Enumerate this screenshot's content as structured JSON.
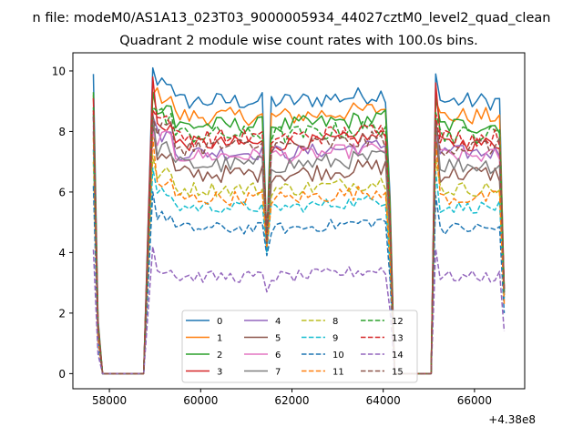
{
  "figure": {
    "suptitle": "n file: modeM0/AS1A13_023T03_9000005934_44027cztM0_level2_quad_clean",
    "offset_label": "+4.38e8"
  },
  "chart_data": {
    "type": "line",
    "title": "Quadrant 2 module wise count rates with 100.0s bins.",
    "xlabel": "",
    "ylabel": "",
    "x_offset": 438000000,
    "xlim": [
      57200,
      67100
    ],
    "ylim": [
      -0.5,
      10.6
    ],
    "xticks": [
      58000,
      60000,
      62000,
      64000,
      66000
    ],
    "xtick_labels": [
      "58000",
      "60000",
      "62000",
      "64000",
      "66000"
    ],
    "yticks": [
      0,
      2,
      4,
      6,
      8,
      10
    ],
    "ytick_labels": [
      "0",
      "2",
      "4",
      "6",
      "8",
      "10"
    ],
    "grid": false,
    "legend_placement": "lower center",
    "legend_columns": 4,
    "x_segments": [
      {
        "start": 57650,
        "end": 58750,
        "step": 100
      },
      {
        "start": 58950,
        "end": 64150,
        "step": 100
      },
      {
        "start": 64250,
        "end": 65050,
        "step": 100
      },
      {
        "start": 65150,
        "end": 66650,
        "step": 100
      }
    ],
    "series": [
      {
        "name": "0",
        "color": "#1f77b4",
        "style": "solid",
        "level": 9.0,
        "edge_start": 9.9,
        "edge_end": 2.6,
        "dip": 4.3,
        "noise": 0.3,
        "burst": 10.1
      },
      {
        "name": "1",
        "color": "#ff7f0e",
        "style": "solid",
        "level": 8.5,
        "edge_start": 9.2,
        "edge_end": 2.8,
        "dip": 4.3,
        "noise": 0.3,
        "burst": 9.2
      },
      {
        "name": "2",
        "color": "#2ca02c",
        "style": "solid",
        "level": 8.2,
        "edge_start": 9.3,
        "edge_end": 2.7,
        "dip": 4.5,
        "noise": 0.3,
        "burst": 9.3
      },
      {
        "name": "3",
        "color": "#d62728",
        "style": "solid",
        "level": 7.6,
        "edge_start": 9.1,
        "edge_end": 2.9,
        "dip": 4.6,
        "noise": 0.25,
        "burst": 9.8
      },
      {
        "name": "4",
        "color": "#9467bd",
        "style": "solid",
        "level": 7.3,
        "edge_start": 8.5,
        "edge_end": 2.8,
        "dip": 4.5,
        "noise": 0.25,
        "burst": 8.5
      },
      {
        "name": "5",
        "color": "#8c564b",
        "style": "solid",
        "level": 6.6,
        "edge_start": 8.0,
        "edge_end": 2.8,
        "dip": 4.1,
        "noise": 0.3,
        "burst": 8.2
      },
      {
        "name": "6",
        "color": "#e377c2",
        "style": "solid",
        "level": 7.2,
        "edge_start": 8.2,
        "edge_end": 2.6,
        "dip": 4.4,
        "noise": 0.25,
        "burst": 8.0
      },
      {
        "name": "7",
        "color": "#7f7f7f",
        "style": "solid",
        "level": 6.9,
        "edge_start": 8.6,
        "edge_end": 2.5,
        "dip": 4.3,
        "noise": 0.3,
        "burst": 8.6
      },
      {
        "name": "8",
        "color": "#bcbd22",
        "style": "dashed",
        "level": 6.1,
        "edge_start": 7.0,
        "edge_end": 2.6,
        "dip": 4.2,
        "noise": 0.25,
        "burst": 7.2
      },
      {
        "name": "9",
        "color": "#17becf",
        "style": "dashed",
        "level": 5.5,
        "edge_start": 7.4,
        "edge_end": 2.4,
        "dip": 4.0,
        "noise": 0.2,
        "burst": 6.8
      },
      {
        "name": "10",
        "color": "#1f77b4",
        "style": "dashed",
        "level": 4.8,
        "edge_start": 6.2,
        "edge_end": 2.0,
        "dip": 3.9,
        "noise": 0.2,
        "burst": 6.0
      },
      {
        "name": "11",
        "color": "#ff7f0e",
        "style": "dashed",
        "level": 5.8,
        "edge_start": 7.8,
        "edge_end": 2.3,
        "dip": 4.2,
        "noise": 0.25,
        "burst": 7.8
      },
      {
        "name": "12",
        "color": "#2ca02c",
        "style": "dashed",
        "level": 7.9,
        "edge_start": 8.8,
        "edge_end": 2.6,
        "dip": 4.4,
        "noise": 0.3,
        "burst": 8.8
      },
      {
        "name": "13",
        "color": "#d62728",
        "style": "dashed",
        "level": 7.8,
        "edge_start": 8.7,
        "edge_end": 2.7,
        "dip": 4.4,
        "noise": 0.3,
        "burst": 8.7
      },
      {
        "name": "14",
        "color": "#9467bd",
        "style": "dashed",
        "level": 3.2,
        "edge_start": 4.1,
        "edge_end": 1.4,
        "dip": 2.7,
        "noise": 0.2,
        "burst": 4.2
      },
      {
        "name": "15",
        "color": "#8c564b",
        "style": "dashed",
        "level": 7.5,
        "edge_start": 8.5,
        "edge_end": 2.7,
        "dip": 4.3,
        "noise": 0.3,
        "burst": 8.5
      }
    ]
  }
}
